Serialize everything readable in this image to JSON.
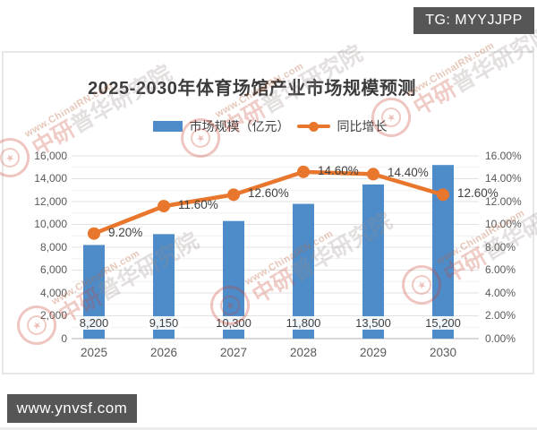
{
  "badges": {
    "top": "TG: MYYJJPP",
    "bottom": "www.ynvsf.com"
  },
  "watermark": {
    "url": "www.ChinaIRN.com",
    "name_red": "中研",
    "name_gray": "普华研究院",
    "seal_glyph": "★"
  },
  "chart_data": {
    "type": "bar",
    "subtype": "bar+line combo",
    "title": "2025-2030年体育场馆产业市场规模预测",
    "categories": [
      "2025",
      "2026",
      "2027",
      "2028",
      "2029",
      "2030"
    ],
    "series": [
      {
        "name": "市场规模（亿元）",
        "type": "bar",
        "axis": "left",
        "values": [
          8200,
          9150,
          10300,
          11800,
          13500,
          15200
        ],
        "labels": [
          "8,200",
          "9,150",
          "10,300",
          "11,800",
          "13,500",
          "15,200"
        ],
        "color": "#4e8cc9"
      },
      {
        "name": "同比增长",
        "type": "line",
        "axis": "right",
        "values": [
          9.2,
          11.6,
          12.6,
          14.6,
          14.4,
          12.6
        ],
        "labels": [
          "9.20%",
          "11.60%",
          "12.60%",
          "14.60%",
          "14.40%",
          "12.60%"
        ],
        "color": "#e8762c"
      }
    ],
    "left_axis": {
      "min": 0,
      "max": 16000,
      "step": 2000,
      "tick_labels": [
        "0",
        "2,000",
        "4,000",
        "6,000",
        "8,000",
        "10,000",
        "12,000",
        "14,000",
        "16,000"
      ]
    },
    "right_axis": {
      "min": 0,
      "max": 16,
      "step": 2,
      "tick_labels": [
        "0.00%",
        "2.00%",
        "4.00%",
        "6.00%",
        "8.00%",
        "10.00%",
        "12.00%",
        "14.00%",
        "16.00%"
      ]
    },
    "legend_position": "top",
    "grid": "horizontal",
    "colors": {
      "bar": "#4e8cc9",
      "line": "#e8762c",
      "grid_major": "#e2e2e2",
      "grid_minor": "#f1f1f1",
      "axis_line": "#b3b3b3",
      "text_dark": "#404040",
      "text_axis": "#595959"
    }
  }
}
